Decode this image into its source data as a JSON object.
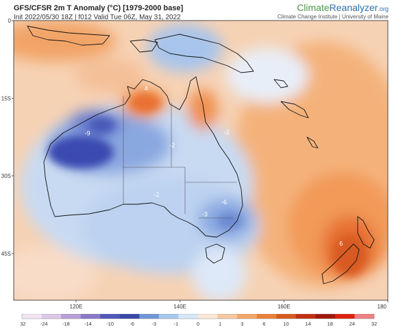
{
  "header": {
    "title": "GFS/CFSR 2m T Anomaly (°C) [1979-2000 base]",
    "subtitle": "Init 2022/05/30 18Z | f012 Valid Tue 06Z, May 31, 2022"
  },
  "brand": {
    "name_part1": "Climate",
    "name_part2": "Reanalyzer",
    "name_suffix": ".org",
    "institute": "Climate Change Institute | University of Maine"
  },
  "map": {
    "lat_labels": [
      "0",
      "15S",
      "30S",
      "45S"
    ],
    "lon_labels": [
      "120E",
      "140E",
      "160E",
      "180"
    ],
    "anomaly_labels": [
      {
        "text": "4",
        "lon": 133.5,
        "lat": -13.5
      },
      {
        "text": "-9",
        "lon": 122.2,
        "lat": -22.2
      },
      {
        "text": "-2",
        "lon": 149.0,
        "lat": -22.0
      },
      {
        "text": "-2",
        "lon": 138.5,
        "lat": -24.5
      },
      {
        "text": "-2",
        "lon": 135.5,
        "lat": -34.0
      },
      {
        "text": "-6",
        "lon": 148.5,
        "lat": -35.5
      },
      {
        "text": "-3",
        "lon": 144.8,
        "lat": -37.8
      },
      {
        "text": "6",
        "lon": 171.0,
        "lat": -43.5
      }
    ]
  },
  "colorbar": {
    "labels": [
      "-32",
      "-24",
      "-18",
      "-14",
      "-10",
      "-6",
      "-3",
      "-1",
      "0",
      "1",
      "3",
      "6",
      "10",
      "14",
      "18",
      "24",
      "32"
    ],
    "colors": [
      "#f3e6f3",
      "#dcc8e8",
      "#b8a0d8",
      "#8a78c8",
      "#5058b8",
      "#3848a8",
      "#6f98d8",
      "#a8c8ee",
      "#d8e8f8",
      "#fde8d8",
      "#f8c8a0",
      "#f4a868",
      "#ea8038",
      "#d85a1e",
      "#c03010",
      "#a01808",
      "#e02010",
      "#f08080"
    ]
  }
}
